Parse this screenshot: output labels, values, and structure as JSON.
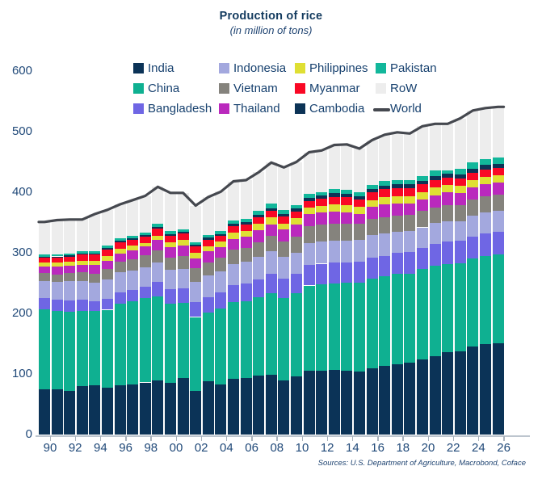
{
  "header": {
    "title": "Production of rice",
    "subtitle": "(in million of tons)"
  },
  "source_note": "Sources: U.S. Department of Agriculture, Macrobond, Coface",
  "colors": {
    "title_text": "#123a5e",
    "axis_text": "#1f4878",
    "legend_text": "#16406e",
    "axis_line": "#bdc5ce",
    "tick": "#aab3bd",
    "background": "#ffffff",
    "world_line": "#45484f"
  },
  "chart_data": {
    "type": "bar",
    "stacked": true,
    "title": "Production of rice",
    "subtitle": "(in million of tons)",
    "grid": false,
    "legend_position": "top",
    "ylim": [
      0,
      600
    ],
    "y_ticks": [
      0,
      100,
      200,
      300,
      400,
      500,
      600
    ],
    "x": [
      1990,
      1991,
      1992,
      1993,
      1994,
      1995,
      1996,
      1997,
      1998,
      1999,
      2000,
      2001,
      2002,
      2003,
      2004,
      2005,
      2006,
      2007,
      2008,
      2009,
      2010,
      2011,
      2012,
      2013,
      2014,
      2015,
      2016,
      2017,
      2018,
      2019,
      2020,
      2021,
      2022,
      2023,
      2024,
      2025,
      2026
    ],
    "x_tick_labels": [
      "90",
      "92",
      "94",
      "96",
      "98",
      "00",
      "02",
      "04",
      "06",
      "08",
      "10",
      "12",
      "14",
      "16",
      "18",
      "20",
      "22",
      "24",
      "26"
    ],
    "stack_order_bottom_to_top": [
      "India",
      "China",
      "Bangladesh",
      "Indonesia",
      "Vietnam",
      "Thailand",
      "Philippines",
      "Myanmar",
      "Cambodia",
      "Pakistan",
      "RoW"
    ],
    "series": [
      {
        "name": "India",
        "color": "#0b3357",
        "values": [
          74.3,
          74.7,
          72.6,
          80.3,
          81.2,
          77.0,
          81.7,
          82.5,
          86.0,
          89.7,
          85.0,
          93.3,
          71.8,
          88.5,
          83.1,
          91.8,
          93.4,
          96.7,
          99.2,
          89.1,
          96.0,
          105.3,
          105.2,
          106.7,
          105.5,
          104.4,
          109.7,
          112.8,
          116.5,
          118.9,
          124.4,
          129.5,
          135.8,
          137.8,
          145.0,
          149.0,
          151.0
        ]
      },
      {
        "name": "China",
        "color": "#0fb091",
        "values": [
          132.5,
          129.6,
          130.4,
          124.1,
          122.2,
          129.0,
          134.0,
          137.0,
          138.9,
          138.6,
          131.5,
          124.3,
          122.2,
          112.5,
          125.4,
          126.4,
          127.2,
          130.2,
          134.3,
          136.6,
          137.0,
          140.7,
          143.0,
          142.5,
          144.6,
          145.8,
          147.8,
          148.9,
          148.5,
          146.7,
          148.3,
          148.9,
          145.9,
          144.6,
          145.3,
          146.0,
          146.0
        ]
      },
      {
        "name": "Bangladesh",
        "color": "#6f66e4",
        "values": [
          17.9,
          18.3,
          18.3,
          18.0,
          16.8,
          17.7,
          18.9,
          18.9,
          19.7,
          23.1,
          23.1,
          24.3,
          25.2,
          26.2,
          25.6,
          28.8,
          29.0,
          28.8,
          31.2,
          31.0,
          31.7,
          33.7,
          33.8,
          34.4,
          34.5,
          34.6,
          34.6,
          32.7,
          34.9,
          35.9,
          34.8,
          35.9,
          36.4,
          37.0,
          37.0,
          37.2,
          37.5
        ]
      },
      {
        "name": "Indonesia",
        "color": "#a3a8de",
        "values": [
          29.0,
          29.0,
          31.4,
          31.0,
          30.1,
          32.3,
          33.2,
          32.1,
          31.1,
          32.1,
          32.4,
          32.0,
          33.4,
          35.0,
          34.8,
          34.9,
          35.3,
          37.0,
          38.3,
          36.4,
          35.5,
          36.5,
          36.6,
          36.3,
          35.6,
          36.2,
          36.9,
          37.0,
          34.2,
          34.7,
          34.5,
          34.4,
          34.0,
          33.0,
          34.0,
          34.5,
          34.6
        ]
      },
      {
        "name": "Vietnam",
        "color": "#85837d",
        "values": [
          12.4,
          13.0,
          14.2,
          14.8,
          15.5,
          16.9,
          17.8,
          18.4,
          19.7,
          20.9,
          20.5,
          21.0,
          21.5,
          22.1,
          22.7,
          22.8,
          22.9,
          24.4,
          24.4,
          25.0,
          26.4,
          27.2,
          27.5,
          28.2,
          28.2,
          27.6,
          27.4,
          27.7,
          27.3,
          27.1,
          27.1,
          26.3,
          27.0,
          26.6,
          26.5,
          26.5,
          26.5
        ]
      },
      {
        "name": "Thailand",
        "color": "#ba29bd",
        "values": [
          11.3,
          13.1,
          12.4,
          12.3,
          13.9,
          14.3,
          13.5,
          15.6,
          15.5,
          16.5,
          17.0,
          17.5,
          17.2,
          18.0,
          17.4,
          18.2,
          18.3,
          19.8,
          19.9,
          20.3,
          20.3,
          20.5,
          20.2,
          20.5,
          18.8,
          15.8,
          19.2,
          20.4,
          20.3,
          17.7,
          18.9,
          19.9,
          20.9,
          20.1,
          20.1,
          20.1,
          20.1
        ]
      },
      {
        "name": "Philippines",
        "color": "#dfdf33",
        "values": [
          6.1,
          6.2,
          6.0,
          6.8,
          6.9,
          7.1,
          7.4,
          7.2,
          5.5,
          7.7,
          8.1,
          8.4,
          8.5,
          8.8,
          9.4,
          9.8,
          9.8,
          10.5,
          10.8,
          9.8,
          10.5,
          10.7,
          11.4,
          11.9,
          11.9,
          11.0,
          11.7,
          12.2,
          11.7,
          11.9,
          12.4,
          12.5,
          12.4,
          12.0,
          12.1,
          12.3,
          12.3
        ]
      },
      {
        "name": "Myanmar",
        "color": "#f90825",
        "values": [
          8.6,
          8.6,
          8.6,
          10.4,
          10.9,
          11.0,
          10.9,
          10.2,
          10.5,
          11.2,
          10.8,
          10.8,
          10.6,
          10.7,
          9.7,
          11.0,
          11.3,
          11.7,
          11.2,
          11.6,
          11.1,
          10.8,
          11.7,
          11.9,
          12.6,
          12.2,
          12.6,
          13.2,
          13.2,
          13.3,
          12.6,
          12.4,
          12.0,
          12.0,
          12.0,
          12.0,
          12.0
        ]
      },
      {
        "name": "Cambodia",
        "color": "#0c3356",
        "values": [
          1.6,
          1.5,
          1.5,
          1.5,
          1.4,
          2.2,
          2.2,
          2.2,
          2.3,
          2.6,
          2.5,
          2.6,
          2.4,
          2.9,
          2.6,
          3.8,
          3.9,
          4.2,
          4.5,
          4.7,
          5.2,
          5.4,
          5.7,
          5.9,
          5.9,
          5.8,
          5.9,
          6.2,
          6.5,
          6.7,
          5.9,
          6.3,
          6.5,
          6.8,
          7.0,
          7.2,
          7.3
        ]
      },
      {
        "name": "Pakistan",
        "color": "#12b79b",
        "values": [
          3.3,
          3.2,
          3.1,
          4.0,
          3.4,
          4.0,
          4.3,
          4.3,
          4.7,
          5.2,
          4.8,
          3.9,
          4.5,
          4.8,
          5.0,
          5.5,
          5.4,
          5.6,
          6.9,
          6.8,
          5.0,
          6.2,
          5.5,
          6.7,
          7.0,
          6.8,
          6.8,
          7.4,
          7.2,
          7.4,
          8.4,
          9.3,
          5.5,
          9.0,
          9.9,
          10.2,
          10.4
        ]
      },
      {
        "name": "RoW",
        "color": "#ededed",
        "values": [
          54.0,
          56.8,
          56.5,
          52.8,
          61.5,
          59.5,
          56.1,
          58.6,
          60.1,
          61.4,
          63.3,
          60.9,
          60.7,
          62.5,
          65.3,
          65.0,
          63.5,
          64.1,
          68.3,
          69.7,
          71.3,
          69.0,
          68.4,
          73.0,
          74.4,
          71.8,
          73.4,
          76.5,
          78.7,
          76.7,
          81.7,
          77.6,
          76.6,
          83.1,
          86.1,
          84.0,
          83.3
        ]
      }
    ],
    "line_series": {
      "name": "World",
      "color": "#45484f",
      "values": [
        351,
        354,
        355,
        355,
        364,
        371,
        380,
        387,
        394,
        409,
        399,
        399,
        378,
        392,
        401,
        418,
        420,
        433,
        449,
        441,
        450,
        466,
        469,
        478,
        479,
        472,
        486,
        495,
        499,
        497,
        509,
        513,
        513,
        522,
        535,
        539,
        541
      ]
    },
    "legend_rows": [
      [
        "India",
        "Indonesia",
        "Philippines",
        "Pakistan"
      ],
      [
        "China",
        "Vietnam",
        "Myanmar",
        "RoW"
      ],
      [
        "Bangladesh",
        "Thailand",
        "Cambodia",
        "World"
      ]
    ]
  }
}
